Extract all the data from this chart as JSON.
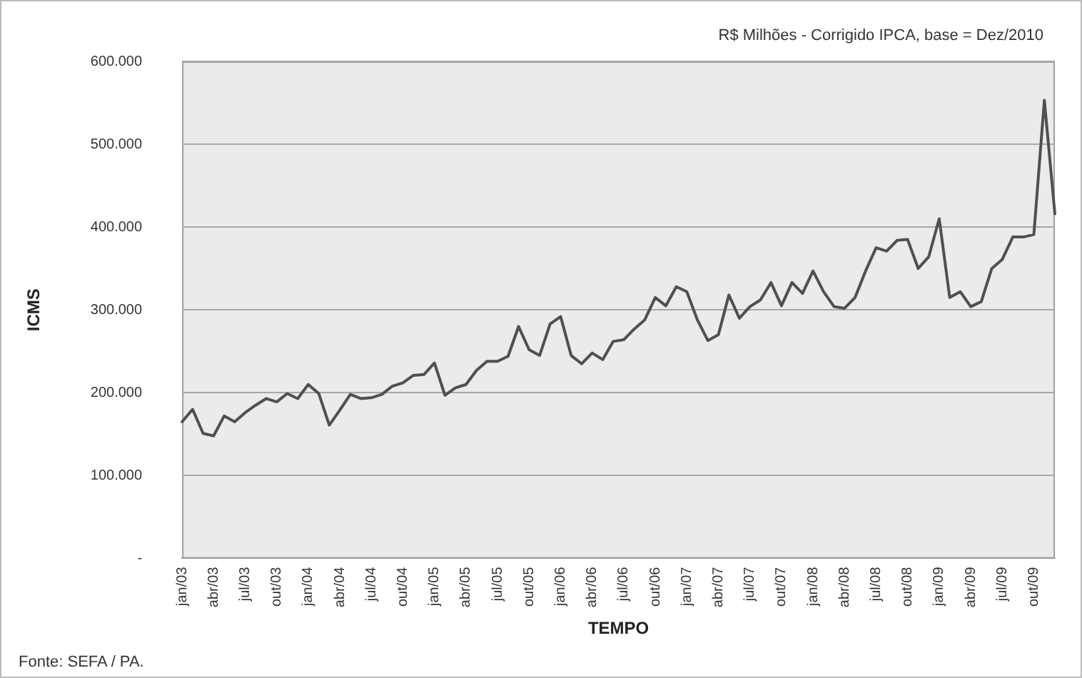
{
  "chart_data": {
    "type": "line",
    "xlabel": "TEMPO",
    "ylabel": "ICMS",
    "annotations": [
      "R$ Milhões - Corrigido IPCA, base = Dez/2010",
      "Fonte: SEFA / PA."
    ],
    "categories": [
      "jan/03",
      null,
      null,
      "abr/03",
      null,
      null,
      "jul/03",
      null,
      null,
      "out/03",
      null,
      null,
      "jan/04",
      null,
      null,
      "abr/04",
      null,
      null,
      "jul/04",
      null,
      null,
      "out/04",
      null,
      null,
      "jan/05",
      null,
      null,
      "abr/05",
      null,
      null,
      "jul/05",
      null,
      null,
      "out/05",
      null,
      null,
      "jan/06",
      null,
      null,
      "abr/06",
      null,
      null,
      "jul/06",
      null,
      null,
      "out/06",
      null,
      null,
      "jan/07",
      null,
      null,
      "abr/07",
      null,
      null,
      "jul/07",
      null,
      null,
      "out/07",
      null,
      null,
      "jan/08",
      null,
      null,
      "abr/08",
      null,
      null,
      "jul/08",
      null,
      null,
      "out/08",
      null,
      null,
      "jan/09",
      null,
      null,
      "abr/09",
      null,
      null,
      "jul/09",
      null,
      null,
      "out/09",
      null,
      null
    ],
    "series": [
      {
        "color": "#505050",
        "values": [
          165000,
          180000,
          151000,
          148000,
          172000,
          165000,
          176000,
          185000,
          193000,
          189000,
          199000,
          193000,
          210000,
          199000,
          161000,
          179000,
          198000,
          193000,
          194000,
          198000,
          208000,
          212000,
          221000,
          222000,
          236000,
          197000,
          206000,
          210000,
          227000,
          238000,
          238000,
          244000,
          280000,
          252000,
          245000,
          283000,
          292000,
          245000,
          235000,
          248000,
          240000,
          262000,
          264000,
          277000,
          288000,
          315000,
          305000,
          328000,
          322000,
          288000,
          263000,
          270000,
          318000,
          290000,
          304000,
          312000,
          333000,
          305000,
          333000,
          320000,
          347000,
          322000,
          304000,
          302000,
          315000,
          347000,
          375000,
          371000,
          384000,
          385000,
          350000,
          364000,
          410000,
          315000,
          322000,
          304000,
          310000,
          350000,
          361000,
          388000,
          388000,
          391000,
          553000,
          416000
        ]
      }
    ],
    "ylim": [
      0,
      600000
    ],
    "yticks": [
      {
        "value": 0,
        "label": "-"
      },
      {
        "value": 100000,
        "label": "100.000"
      },
      {
        "value": 200000,
        "label": "200.000"
      },
      {
        "value": 300000,
        "label": "300.000"
      },
      {
        "value": 400000,
        "label": "400.000"
      },
      {
        "value": 500000,
        "label": "500.000"
      },
      {
        "value": 600000,
        "label": "600.000"
      }
    ],
    "grid": "y",
    "legend": false,
    "marker": "none",
    "line_style": "solid"
  }
}
